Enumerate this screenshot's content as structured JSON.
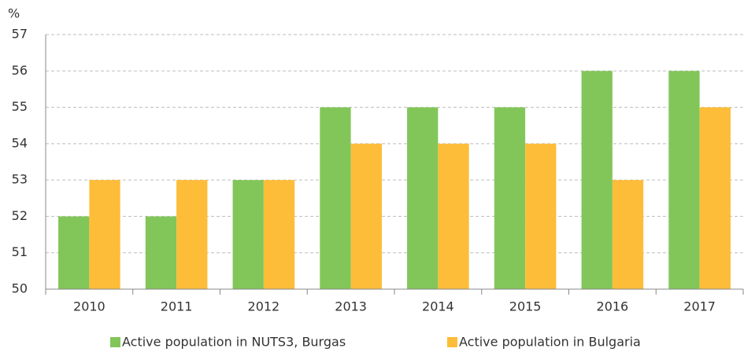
{
  "chart_data": {
    "type": "bar",
    "y_unit": "%",
    "categories": [
      "2010",
      "2011",
      "2012",
      "2013",
      "2014",
      "2015",
      "2016",
      "2017"
    ],
    "series": [
      {
        "name": "Active population in NUTS3, Burgas",
        "color": "#82c65a",
        "values": [
          52,
          52,
          53,
          55,
          55,
          55,
          56,
          56
        ]
      },
      {
        "name": "Active population in Bulgaria",
        "color": "#fdbd39",
        "values": [
          53,
          53,
          53,
          54,
          54,
          54,
          53,
          55
        ]
      }
    ],
    "ylim": [
      50,
      57
    ],
    "yticks": [
      50,
      51,
      52,
      53,
      54,
      55,
      56,
      57
    ],
    "grid": true,
    "legend": "bottom"
  }
}
